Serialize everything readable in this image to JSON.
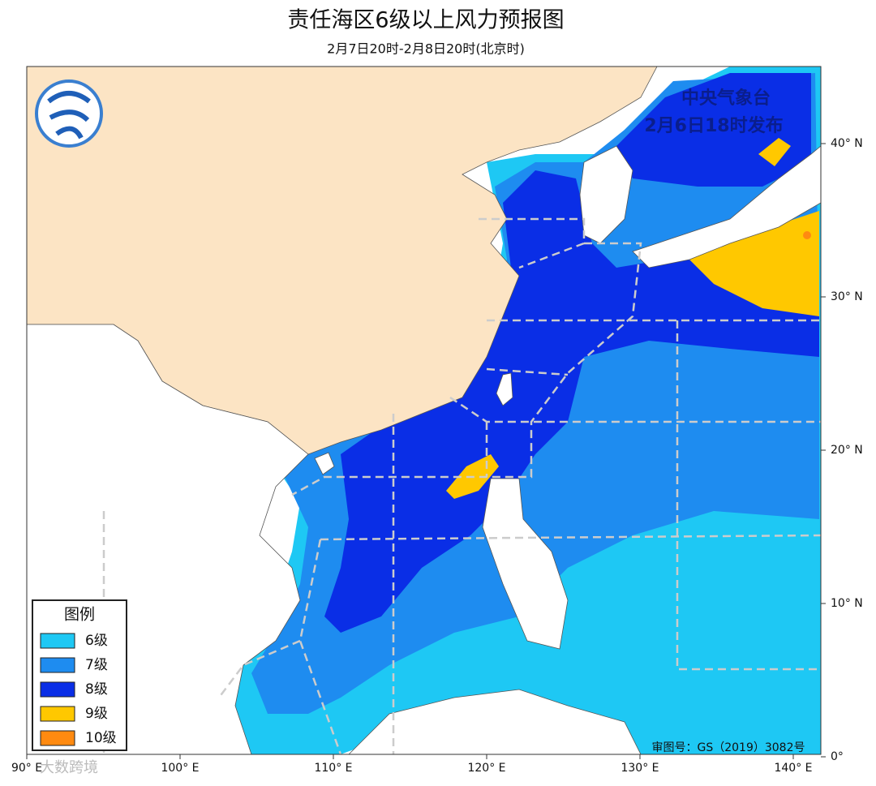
{
  "header": {
    "title": "责任海区6级以上风力预报图",
    "subtitle": "2月7日20时-2月8日20时(北京时)"
  },
  "issuer": {
    "agency": "中央气象台",
    "issued": "2月6日18时发布"
  },
  "legend": {
    "title": "图例",
    "items": [
      {
        "label": "6级",
        "color": "#1ec8f4"
      },
      {
        "label": "7级",
        "color": "#1e8cf0"
      },
      {
        "label": "8级",
        "color": "#0a2ee6"
      },
      {
        "label": "9级",
        "color": "#ffc800"
      },
      {
        "label": "10级",
        "color": "#ff8a10"
      }
    ]
  },
  "axes": {
    "latitude_labels": [
      "40° N",
      "30° N",
      "20° N",
      "10° N",
      "0°"
    ],
    "longitude_labels": [
      "90° E",
      "100° E",
      "110° E",
      "120° E",
      "130° E",
      "140° E"
    ]
  },
  "map_approval": "审图号：GS（2019）3082号",
  "watermark": "大数跨境"
}
